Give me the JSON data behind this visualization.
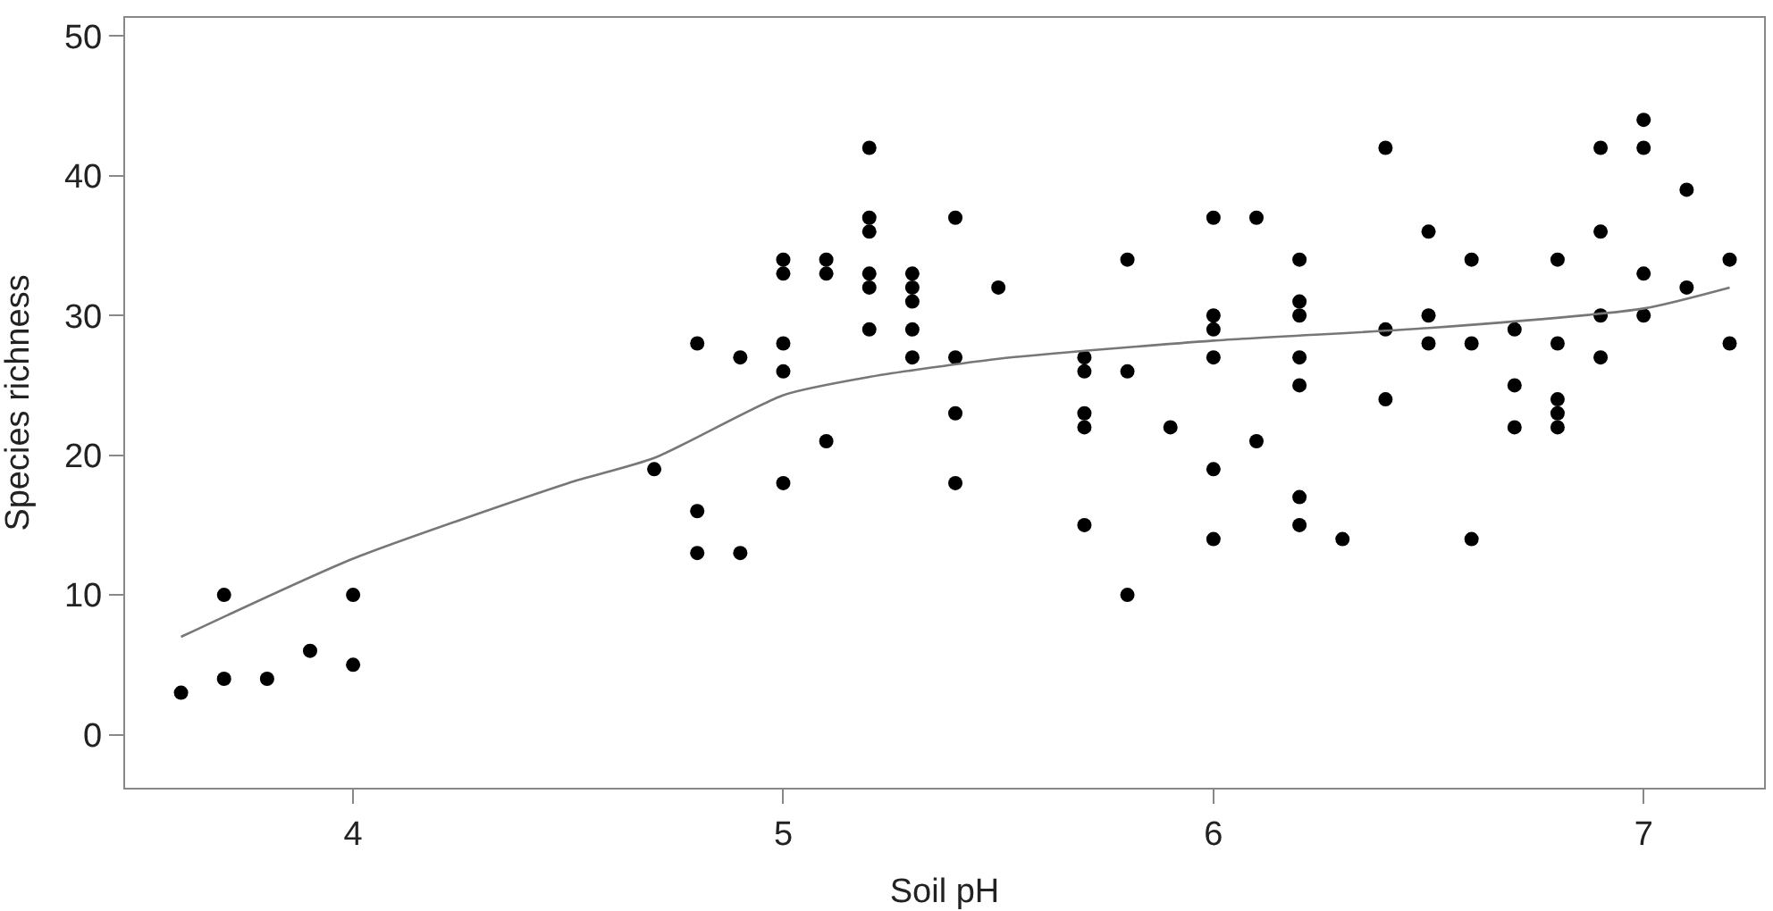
{
  "chart_data": {
    "type": "scatter",
    "xlabel": "Soil pH",
    "ylabel": "Species richness",
    "xlim": [
      3.47,
      7.28
    ],
    "ylim": [
      -3.8,
      51.3
    ],
    "xticks": [
      4,
      5,
      6,
      7
    ],
    "yticks": [
      0,
      10,
      20,
      30,
      40,
      50
    ],
    "grid": false,
    "marker": "circle",
    "series": [
      {
        "color": "#000000",
        "x": [
          3.6,
          3.7,
          3.7,
          3.8,
          3.9,
          4.0,
          4.0,
          4.7,
          4.8,
          4.8,
          4.8,
          4.9,
          4.9,
          5.0,
          5.0,
          5.0,
          5.0,
          5.0,
          5.1,
          5.1,
          5.1,
          5.2,
          5.2,
          5.2,
          5.2,
          5.2,
          5.2,
          5.3,
          5.3,
          5.3,
          5.3,
          5.3,
          5.4,
          5.4,
          5.4,
          5.4,
          5.5,
          5.7,
          5.7,
          5.7,
          5.7,
          5.7,
          5.8,
          5.8,
          5.8,
          5.9,
          6.0,
          6.0,
          6.0,
          6.0,
          6.0,
          6.0,
          6.1,
          6.1,
          6.2,
          6.2,
          6.2,
          6.2,
          6.2,
          6.2,
          6.2,
          6.3,
          6.4,
          6.4,
          6.4,
          6.5,
          6.5,
          6.5,
          6.6,
          6.6,
          6.6,
          6.7,
          6.7,
          6.7,
          6.8,
          6.8,
          6.8,
          6.8,
          6.8,
          6.9,
          6.9,
          6.9,
          6.9,
          7.0,
          7.0,
          7.0,
          7.0,
          7.1,
          7.1,
          7.2,
          7.2
        ],
        "values": [
          3,
          4,
          10,
          4,
          6,
          5,
          10,
          19,
          28,
          16,
          13,
          27,
          13,
          34,
          33,
          28,
          26,
          18,
          34,
          33,
          21,
          42,
          37,
          36,
          33,
          32,
          29,
          33,
          32,
          31,
          29,
          27,
          37,
          27,
          23,
          18,
          32,
          27,
          26,
          23,
          22,
          15,
          34,
          26,
          10,
          22,
          37,
          30,
          29,
          27,
          19,
          14,
          37,
          21,
          34,
          31,
          30,
          27,
          25,
          17,
          15,
          14,
          42,
          29,
          24,
          36,
          30,
          28,
          34,
          28,
          14,
          29,
          25,
          22,
          34,
          28,
          24,
          23,
          22,
          42,
          36,
          30,
          27,
          44,
          42,
          33,
          30,
          39,
          32,
          34,
          28
        ]
      },
      {
        "type": "line",
        "color": "#777777",
        "marker": "none",
        "x": [
          3.6,
          4.0,
          4.5,
          4.7,
          5.0,
          5.2,
          5.5,
          6.0,
          6.5,
          7.0,
          7.2
        ],
        "values": [
          7,
          12.6,
          18,
          19.8,
          24.3,
          25.6,
          26.9,
          28.2,
          29.1,
          30.5,
          32
        ]
      }
    ]
  }
}
